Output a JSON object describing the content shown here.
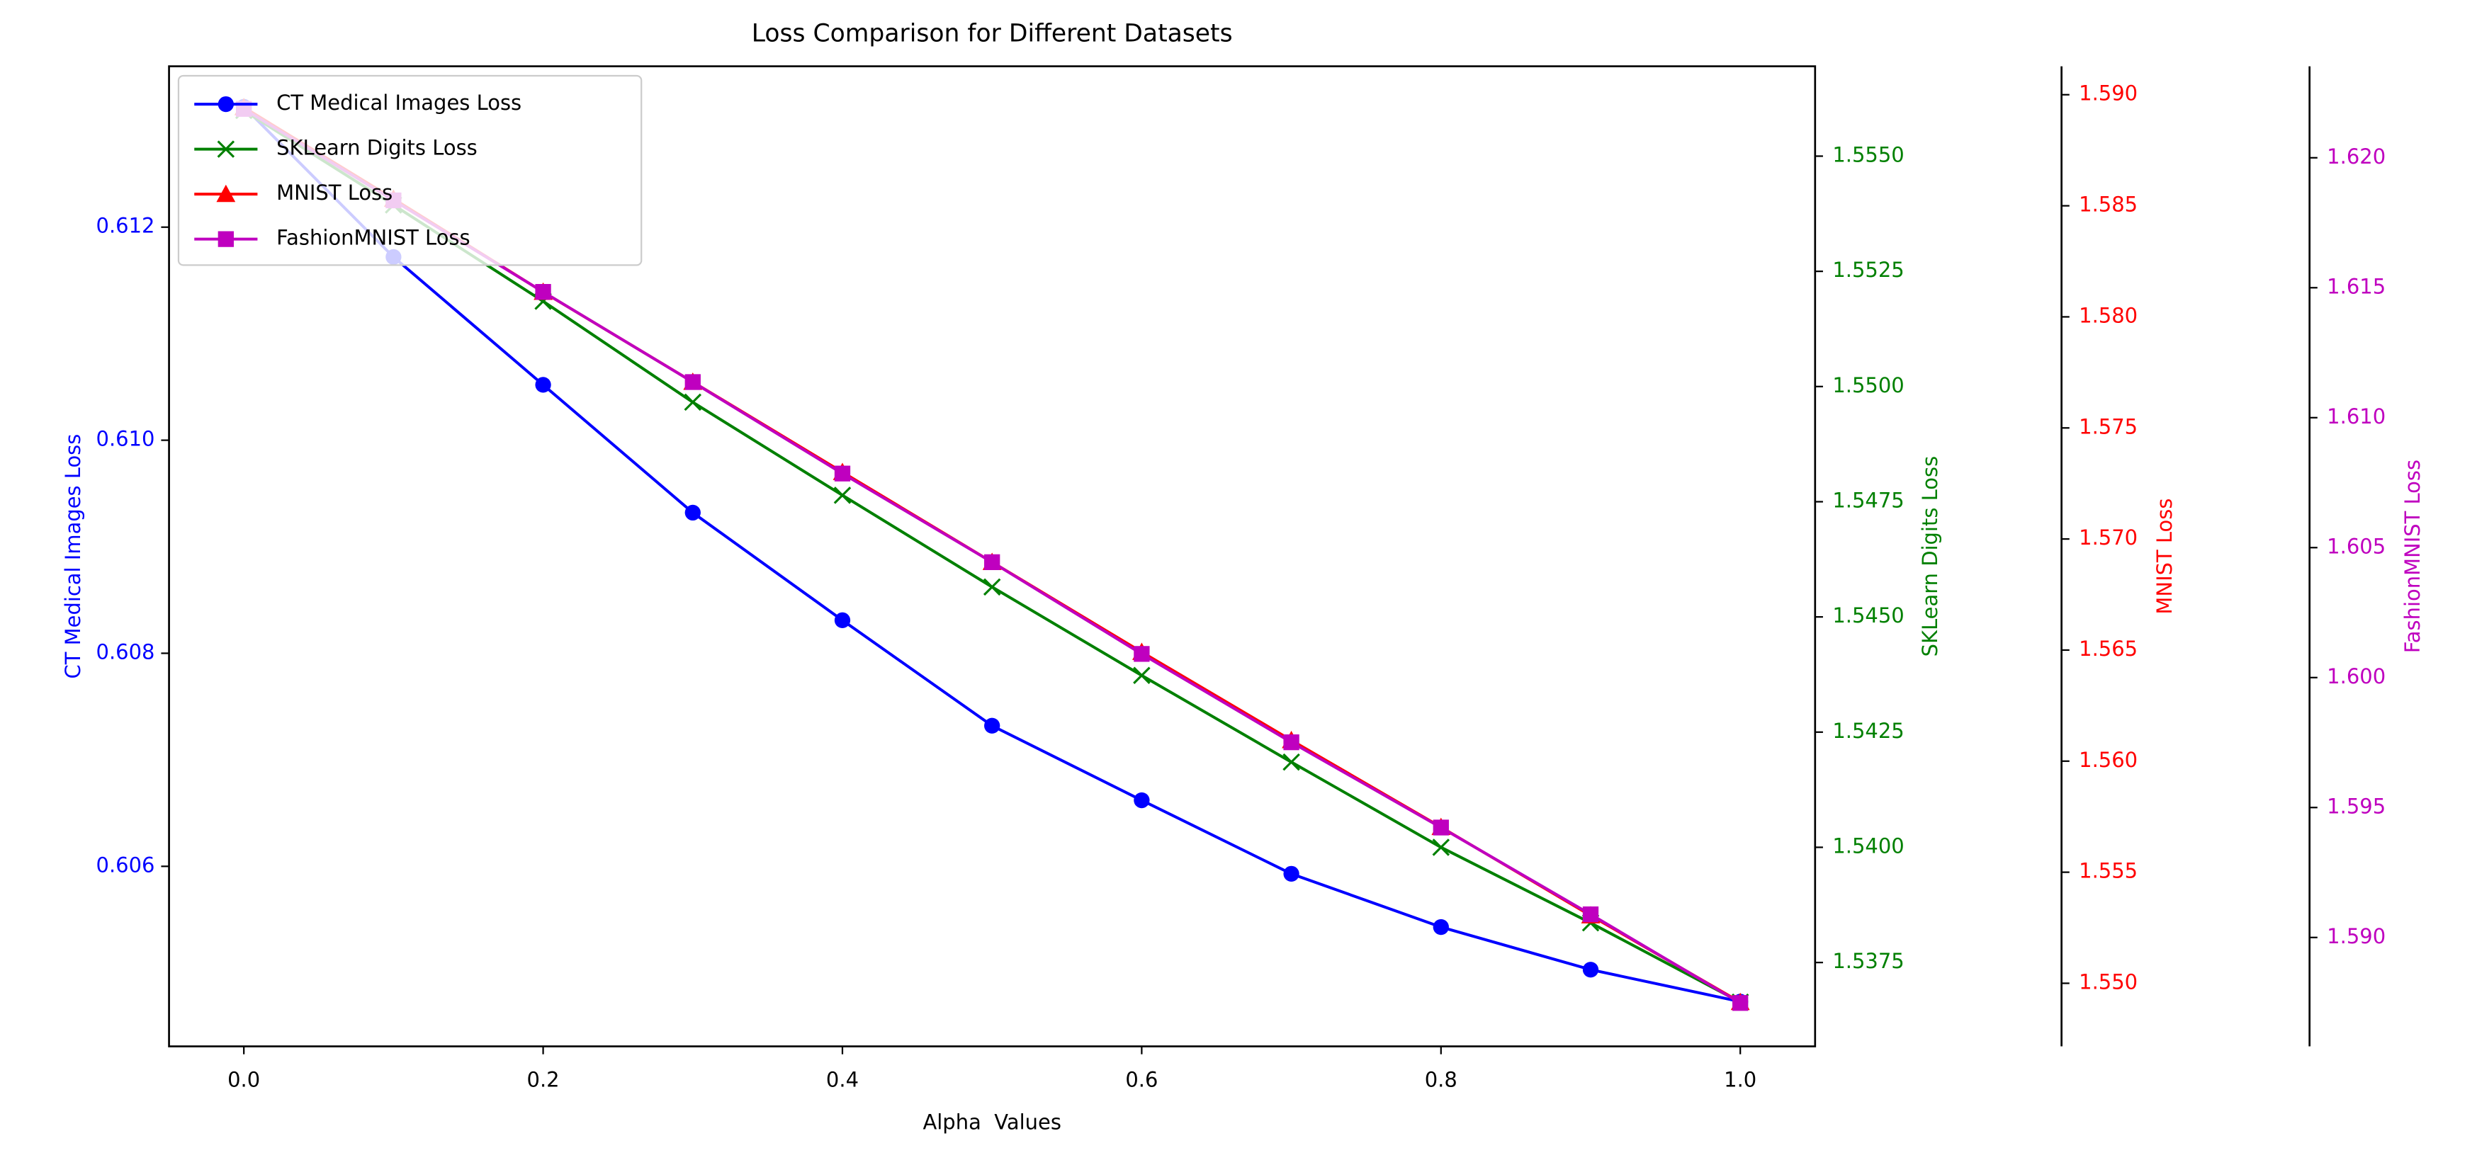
{
  "chart_data": {
    "type": "line",
    "title": "Loss Comparison for Different Datasets",
    "xlabel": "Alpha  Values",
    "x": [
      0.0,
      0.1,
      0.2,
      0.3,
      0.4,
      0.5,
      0.6,
      0.7,
      0.8,
      0.9,
      1.0
    ],
    "xlim": [
      -0.05,
      1.05
    ],
    "xticks": [
      {
        "value": 0,
        "label": "0.0"
      },
      0.2,
      0.4,
      0.6,
      0.8,
      {
        "value": 1,
        "label": "1.0"
      }
    ],
    "ylabel": "CT Medical Images Loss",
    "ylim": [
      0.60431,
      0.61351
    ],
    "yticks": [
      0.606,
      0.608,
      {
        "value": 0.61,
        "label": "0.610"
      },
      0.612
    ],
    "y2label": "SKLearn Digits Loss",
    "y2lim": [
      1.53568,
      1.55695
    ],
    "y2ticks": [
      1.5375,
      {
        "value": 1.54,
        "label": "1.5400"
      },
      1.5425,
      {
        "value": 1.545,
        "label": "1.5450"
      },
      1.5475,
      {
        "value": 1.55,
        "label": "1.5500"
      },
      1.5525,
      {
        "value": 1.555,
        "label": "1.5550"
      }
    ],
    "y3label": "MNIST Loss",
    "y3lim": [
      1.54716,
      1.59128
    ],
    "y3ticks": [
      {
        "value": 1.55,
        "label": "1.550"
      },
      1.555,
      {
        "value": 1.56,
        "label": "1.560"
      },
      1.565,
      {
        "value": 1.57,
        "label": "1.570"
      },
      1.575,
      {
        "value": 1.58,
        "label": "1.580"
      },
      1.585,
      {
        "value": 1.59,
        "label": "1.590"
      }
    ],
    "y4label": "FashionMNIST Loss",
    "y4lim": [
      1.58581,
      1.62352
    ],
    "y4ticks": [
      {
        "value": 1.59,
        "label": "1.590"
      },
      1.595,
      {
        "value": 1.6,
        "label": "1.600"
      },
      1.605,
      {
        "value": 1.61,
        "label": "1.610"
      },
      1.615,
      {
        "value": 1.62,
        "label": "1.620"
      }
    ],
    "legend": "upper left",
    "series": [
      {
        "name": "CT Medical Images Loss",
        "color": "#0000ff",
        "marker": "circle",
        "axis": "y",
        "values": [
          0.61313,
          0.61172,
          0.61052,
          0.60932,
          0.60831,
          0.60732,
          0.60662,
          0.60593,
          0.60543,
          0.60503,
          0.60473
        ]
      },
      {
        "name": "SKLearn Digits Loss",
        "color": "#008000",
        "marker": "x",
        "axis": "y2",
        "values": [
          1.55599,
          1.55394,
          1.55185,
          1.54966,
          1.54764,
          1.54565,
          1.54373,
          1.54185,
          1.54,
          1.53836,
          1.53664
        ]
      },
      {
        "name": "MNIST Loss",
        "color": "#ff0000",
        "marker": "triangle",
        "axis": "y3",
        "values": [
          1.58943,
          1.58531,
          1.58112,
          1.57707,
          1.57301,
          1.56896,
          1.56491,
          1.56094,
          1.55703,
          1.55305,
          1.54915
        ]
      },
      {
        "name": "FashionMNIST Loss",
        "color": "#bf00bf",
        "marker": "square",
        "axis": "y4",
        "values": [
          1.62188,
          1.61836,
          1.61484,
          1.61137,
          1.60785,
          1.60444,
          1.60091,
          1.59751,
          1.59423,
          1.59089,
          1.58748
        ]
      }
    ]
  }
}
